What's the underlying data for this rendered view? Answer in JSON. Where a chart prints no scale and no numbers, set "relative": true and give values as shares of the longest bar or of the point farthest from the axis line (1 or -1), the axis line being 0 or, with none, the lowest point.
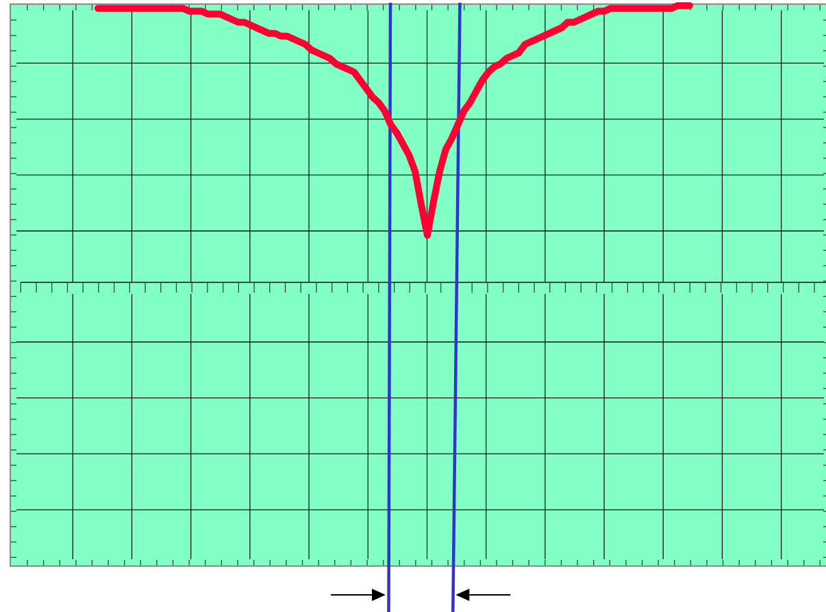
{
  "chart_data": {
    "type": "line",
    "relative": true,
    "grid": true,
    "color": "#ff0033",
    "categories": [
      null,
      null,
      null,
      null,
      null,
      null,
      null,
      null,
      null,
      null,
      null,
      null,
      null,
      null,
      null,
      null,
      null,
      null,
      null,
      null,
      null,
      null,
      null,
      null,
      null,
      null,
      null,
      null,
      null,
      null,
      null,
      null,
      null,
      null,
      null,
      null,
      null,
      null,
      null,
      null,
      null,
      null,
      null,
      null,
      null,
      null,
      null,
      null,
      null,
      null,
      null,
      null,
      null,
      null,
      null,
      null,
      null,
      null,
      null,
      null,
      null,
      null,
      null,
      null,
      null,
      null,
      null,
      null,
      null,
      null,
      null,
      null,
      null,
      null,
      null,
      null,
      null,
      null,
      null,
      null,
      null,
      null,
      null,
      null,
      null,
      null,
      null,
      null,
      null,
      null,
      null,
      null,
      null,
      null,
      null,
      null,
      null,
      null,
      null,
      null,
      null,
      null,
      null,
      null,
      null,
      null,
      null,
      null,
      null,
      null,
      null,
      null,
      null,
      null,
      null,
      null,
      null,
      null,
      null,
      null,
      null,
      null,
      null,
      null,
      null,
      null,
      null,
      null,
      null,
      null,
      null,
      null,
      null,
      null
    ],
    "values": [
      null,
      null,
      null,
      null,
      null,
      null,
      null,
      null,
      null,
      null,
      null,
      null,
      null,
      null,
      0.99,
      0.99,
      0.99,
      0.99,
      0.99,
      0.99,
      0.99,
      0.99,
      0.99,
      0.99,
      0.99,
      0.99,
      0.99,
      0.99,
      0.99,
      0.98,
      0.98,
      0.98,
      0.97,
      0.97,
      0.97,
      0.96,
      0.95,
      0.94,
      0.94,
      0.93,
      0.92,
      0.91,
      0.9,
      0.9,
      0.89,
      0.89,
      0.88,
      0.87,
      0.86,
      0.84,
      0.83,
      0.82,
      0.81,
      0.79,
      0.78,
      0.77,
      0.76,
      0.73,
      0.7,
      0.67,
      0.65,
      0.62,
      0.57,
      0.54,
      0.5,
      0.46,
      0.4,
      0.28,
      0.17,
      0.29,
      0.4,
      0.48,
      0.52,
      0.57,
      0.62,
      0.65,
      0.69,
      0.73,
      0.76,
      0.78,
      0.79,
      0.81,
      0.82,
      0.83,
      0.86,
      0.87,
      0.88,
      0.89,
      0.9,
      0.91,
      0.92,
      0.94,
      0.94,
      0.95,
      0.96,
      0.97,
      0.98,
      0.98,
      0.99,
      0.99,
      0.99,
      0.99,
      0.99,
      0.99,
      0.99,
      0.99,
      0.99,
      0.99,
      0.99,
      1,
      1,
      1,
      null,
      null,
      null,
      null,
      null,
      null,
      null,
      null,
      null,
      null,
      null,
      null,
      null,
      null,
      null,
      null,
      null,
      null,
      null,
      null,
      null,
      null
    ]
  }
}
